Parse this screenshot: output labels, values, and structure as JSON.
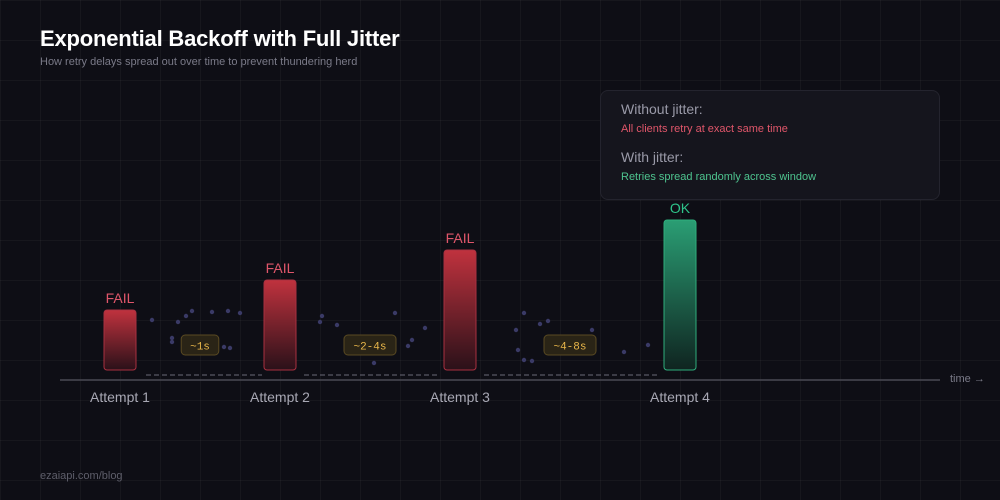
{
  "header": {
    "title": "Exponential Backoff with Full Jitter",
    "subtitle": "How retry delays spread out over time to prevent thundering herd"
  },
  "legend": {
    "without": {
      "heading": "Without jitter:",
      "description": "All clients retry at exact same time",
      "color": "#e0566a"
    },
    "with": {
      "heading": "With jitter:",
      "description": "Retries spread randomly across window",
      "color": "#4ec48f"
    }
  },
  "axis": {
    "label": "time →"
  },
  "attempts": [
    {
      "label": "Attempt 1",
      "result": "FAIL",
      "status": "fail",
      "level": 0.25
    },
    {
      "label": "Attempt 2",
      "result": "FAIL",
      "status": "fail",
      "level": 0.375
    },
    {
      "label": "Attempt 3",
      "result": "FAIL",
      "status": "fail",
      "level": 0.5
    },
    {
      "label": "Attempt 4",
      "result": "OK",
      "status": "ok",
      "level": 0.625
    }
  ],
  "delays": [
    {
      "label": "~1s"
    },
    {
      "label": "~2-4s"
    },
    {
      "label": "~4-8s"
    }
  ],
  "colors": {
    "fail": "#e0566a",
    "ok": "#2ec48a",
    "delay_badge_text": "#e8b64a",
    "delay_badge_bg": "#2a2416",
    "delay_badge_border": "#5a4a22",
    "jitter_dot": "#3a3a66",
    "axis_line": "#4a4a55",
    "attempt_label": "#a8a8b4"
  },
  "footer": {
    "text": "ezaiapi.com/blog"
  }
}
